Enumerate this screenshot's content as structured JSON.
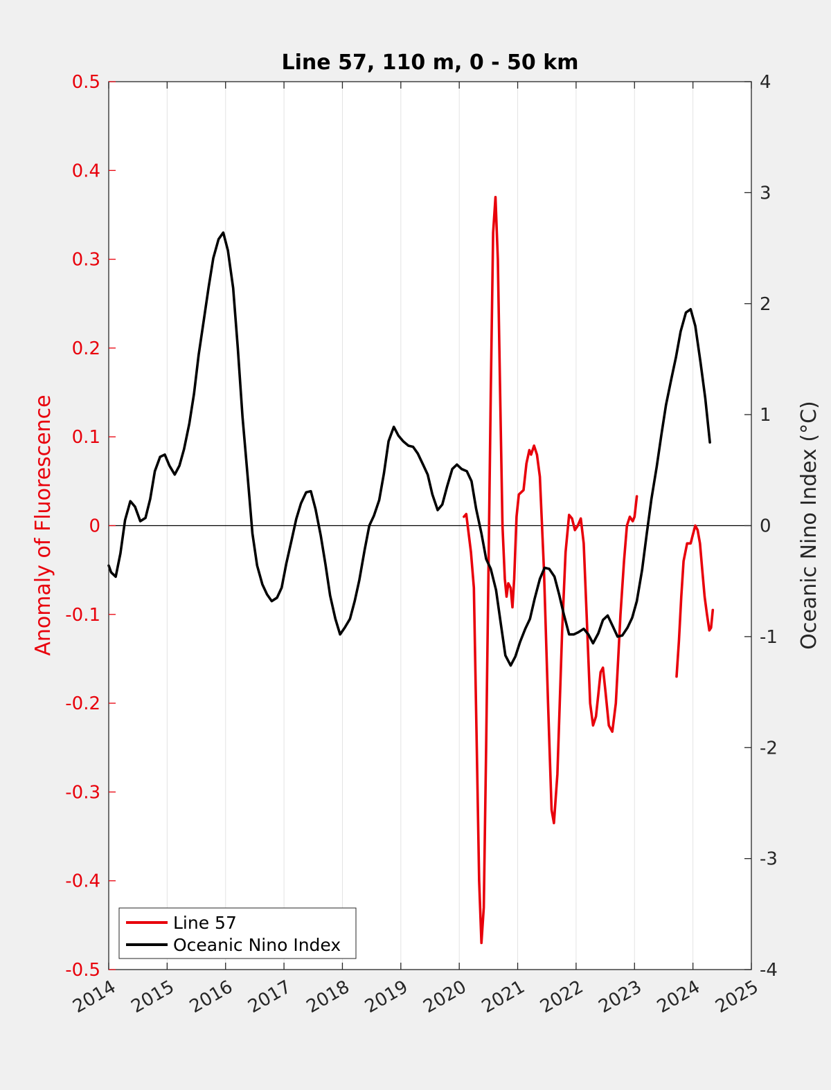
{
  "chart_data": {
    "type": "line",
    "title": "Line 57, 110 m, 0 - 50 km",
    "ylabel": "Anomaly of Fluorescence",
    "ylabel_right": "Oceanic Nino Index (°C)",
    "xlim": [
      2014,
      2025
    ],
    "ylim": [
      -0.5,
      0.5
    ],
    "ylim_right": [
      -4,
      4
    ],
    "x_ticks": [
      "2014",
      "2015",
      "2016",
      "2017",
      "2018",
      "2019",
      "2020",
      "2021",
      "2022",
      "2023",
      "2024",
      "2025"
    ],
    "y_ticks": [
      "-0.5",
      "-0.4",
      "-0.3",
      "-0.2",
      "-0.1",
      "0",
      "0.1",
      "0.2",
      "0.3",
      "0.4",
      "0.5"
    ],
    "y_ticks_right": [
      "-4",
      "-3",
      "-2",
      "-1",
      "0",
      "1",
      "2",
      "3",
      "4"
    ],
    "grid": "vertical",
    "zero_line": true,
    "legend_position": "bottom-left",
    "colors": {
      "line57": "#e8000b",
      "oni": "#000000",
      "left_axis": "#e8000b"
    },
    "series": [
      {
        "name": "Line 57",
        "axis": "left",
        "color": "#e8000b",
        "segments": [
          [
            [
              2020.08,
              0.01
            ],
            [
              2020.12,
              0.013
            ],
            [
              2020.2,
              -0.03
            ],
            [
              2020.25,
              -0.07
            ],
            [
              2020.3,
              -0.25
            ],
            [
              2020.34,
              -0.4
            ],
            [
              2020.38,
              -0.47
            ],
            [
              2020.42,
              -0.43
            ],
            [
              2020.46,
              -0.25
            ],
            [
              2020.5,
              -0.05
            ],
            [
              2020.54,
              0.15
            ],
            [
              2020.58,
              0.33
            ],
            [
              2020.62,
              0.37
            ],
            [
              2020.66,
              0.3
            ],
            [
              2020.7,
              0.15
            ],
            [
              2020.74,
              0.0
            ],
            [
              2020.78,
              -0.06
            ],
            [
              2020.81,
              -0.08
            ],
            [
              2020.84,
              -0.065
            ],
            [
              2020.88,
              -0.07
            ],
            [
              2020.91,
              -0.092
            ],
            [
              2020.94,
              -0.06
            ],
            [
              2020.98,
              0.01
            ],
            [
              2021.02,
              0.035
            ],
            [
              2021.1,
              0.04
            ],
            [
              2021.15,
              0.07
            ],
            [
              2021.2,
              0.085
            ],
            [
              2021.23,
              0.08
            ],
            [
              2021.28,
              0.09
            ],
            [
              2021.33,
              0.08
            ],
            [
              2021.38,
              0.055
            ],
            [
              2021.45,
              -0.05
            ],
            [
              2021.52,
              -0.2
            ],
            [
              2021.58,
              -0.32
            ],
            [
              2021.62,
              -0.335
            ],
            [
              2021.68,
              -0.28
            ],
            [
              2021.72,
              -0.2
            ],
            [
              2021.76,
              -0.12
            ],
            [
              2021.82,
              -0.03
            ],
            [
              2021.88,
              0.012
            ],
            [
              2021.93,
              0.008
            ],
            [
              2021.98,
              -0.005
            ],
            [
              2022.03,
              0.0
            ],
            [
              2022.08,
              0.008
            ],
            [
              2022.13,
              -0.02
            ],
            [
              2022.18,
              -0.1
            ],
            [
              2022.24,
              -0.2
            ],
            [
              2022.29,
              -0.225
            ],
            [
              2022.34,
              -0.215
            ],
            [
              2022.38,
              -0.19
            ],
            [
              2022.42,
              -0.165
            ],
            [
              2022.46,
              -0.16
            ],
            [
              2022.5,
              -0.185
            ],
            [
              2022.56,
              -0.225
            ],
            [
              2022.62,
              -0.232
            ],
            [
              2022.68,
              -0.2
            ],
            [
              2022.72,
              -0.15
            ],
            [
              2022.76,
              -0.1
            ],
            [
              2022.82,
              -0.04
            ],
            [
              2022.87,
              0.0
            ],
            [
              2022.92,
              0.01
            ],
            [
              2022.97,
              0.005
            ],
            [
              2023.0,
              0.01
            ],
            [
              2023.04,
              0.033
            ]
          ],
          [
            [
              2023.72,
              -0.17
            ],
            [
              2023.76,
              -0.13
            ],
            [
              2023.8,
              -0.08
            ],
            [
              2023.84,
              -0.04
            ],
            [
              2023.9,
              -0.02
            ],
            [
              2023.96,
              -0.02
            ],
            [
              2024.0,
              -0.01
            ],
            [
              2024.04,
              0.0
            ],
            [
              2024.08,
              -0.005
            ],
            [
              2024.12,
              -0.02
            ],
            [
              2024.16,
              -0.05
            ],
            [
              2024.2,
              -0.08
            ],
            [
              2024.24,
              -0.1
            ],
            [
              2024.28,
              -0.118
            ],
            [
              2024.31,
              -0.115
            ],
            [
              2024.34,
              -0.095
            ]
          ]
        ]
      },
      {
        "name": "Oceanic Nino Index",
        "axis": "right",
        "color": "#000000",
        "segments": [
          [
            [
              2014.0,
              -0.36
            ],
            [
              2014.04,
              -0.42
            ],
            [
              2014.12,
              -0.46
            ],
            [
              2014.2,
              -0.25
            ],
            [
              2014.28,
              0.05
            ],
            [
              2014.37,
              0.22
            ],
            [
              2014.45,
              0.17
            ],
            [
              2014.54,
              0.04
            ],
            [
              2014.63,
              0.07
            ],
            [
              2014.71,
              0.24
            ],
            [
              2014.79,
              0.49
            ],
            [
              2014.88,
              0.62
            ],
            [
              2014.96,
              0.64
            ],
            [
              2015.04,
              0.54
            ],
            [
              2015.13,
              0.46
            ],
            [
              2015.21,
              0.54
            ],
            [
              2015.29,
              0.69
            ],
            [
              2015.38,
              0.92
            ],
            [
              2015.46,
              1.19
            ],
            [
              2015.54,
              1.54
            ],
            [
              2015.63,
              1.86
            ],
            [
              2015.71,
              2.15
            ],
            [
              2015.79,
              2.41
            ],
            [
              2015.88,
              2.58
            ],
            [
              2015.96,
              2.64
            ],
            [
              2016.04,
              2.48
            ],
            [
              2016.13,
              2.14
            ],
            [
              2016.21,
              1.6
            ],
            [
              2016.29,
              0.98
            ],
            [
              2016.38,
              0.43
            ],
            [
              2016.46,
              -0.07
            ],
            [
              2016.54,
              -0.36
            ],
            [
              2016.63,
              -0.53
            ],
            [
              2016.71,
              -0.62
            ],
            [
              2016.79,
              -0.68
            ],
            [
              2016.88,
              -0.65
            ],
            [
              2016.96,
              -0.56
            ],
            [
              2017.04,
              -0.34
            ],
            [
              2017.13,
              -0.13
            ],
            [
              2017.21,
              0.06
            ],
            [
              2017.29,
              0.2
            ],
            [
              2017.38,
              0.3
            ],
            [
              2017.46,
              0.31
            ],
            [
              2017.54,
              0.15
            ],
            [
              2017.63,
              -0.09
            ],
            [
              2017.71,
              -0.35
            ],
            [
              2017.79,
              -0.63
            ],
            [
              2017.88,
              -0.84
            ],
            [
              2017.96,
              -0.98
            ],
            [
              2018.04,
              -0.92
            ],
            [
              2018.13,
              -0.84
            ],
            [
              2018.21,
              -0.68
            ],
            [
              2018.29,
              -0.49
            ],
            [
              2018.38,
              -0.22
            ],
            [
              2018.46,
              0.0
            ],
            [
              2018.54,
              0.09
            ],
            [
              2018.63,
              0.23
            ],
            [
              2018.71,
              0.47
            ],
            [
              2018.79,
              0.76
            ],
            [
              2018.88,
              0.89
            ],
            [
              2018.96,
              0.81
            ],
            [
              2019.04,
              0.76
            ],
            [
              2019.13,
              0.72
            ],
            [
              2019.21,
              0.71
            ],
            [
              2019.29,
              0.65
            ],
            [
              2019.38,
              0.55
            ],
            [
              2019.46,
              0.46
            ],
            [
              2019.54,
              0.28
            ],
            [
              2019.63,
              0.14
            ],
            [
              2019.71,
              0.19
            ],
            [
              2019.79,
              0.35
            ],
            [
              2019.88,
              0.51
            ],
            [
              2019.96,
              0.55
            ],
            [
              2020.04,
              0.51
            ],
            [
              2020.13,
              0.49
            ],
            [
              2020.21,
              0.4
            ],
            [
              2020.29,
              0.15
            ],
            [
              2020.38,
              -0.07
            ],
            [
              2020.46,
              -0.3
            ],
            [
              2020.54,
              -0.39
            ],
            [
              2020.63,
              -0.58
            ],
            [
              2020.71,
              -0.88
            ],
            [
              2020.79,
              -1.17
            ],
            [
              2020.88,
              -1.26
            ],
            [
              2020.96,
              -1.18
            ],
            [
              2021.04,
              -1.05
            ],
            [
              2021.13,
              -0.93
            ],
            [
              2021.21,
              -0.84
            ],
            [
              2021.29,
              -0.66
            ],
            [
              2021.38,
              -0.48
            ],
            [
              2021.46,
              -0.38
            ],
            [
              2021.54,
              -0.39
            ],
            [
              2021.63,
              -0.46
            ],
            [
              2021.71,
              -0.62
            ],
            [
              2021.79,
              -0.8
            ],
            [
              2021.88,
              -0.98
            ],
            [
              2021.96,
              -0.98
            ],
            [
              2022.04,
              -0.96
            ],
            [
              2022.13,
              -0.93
            ],
            [
              2022.21,
              -0.98
            ],
            [
              2022.29,
              -1.06
            ],
            [
              2022.38,
              -0.97
            ],
            [
              2022.46,
              -0.85
            ],
            [
              2022.54,
              -0.81
            ],
            [
              2022.63,
              -0.91
            ],
            [
              2022.71,
              -1.0
            ],
            [
              2022.79,
              -0.99
            ],
            [
              2022.88,
              -0.92
            ],
            [
              2022.96,
              -0.83
            ],
            [
              2023.04,
              -0.68
            ],
            [
              2023.13,
              -0.4
            ],
            [
              2023.21,
              -0.07
            ],
            [
              2023.29,
              0.24
            ],
            [
              2023.38,
              0.53
            ],
            [
              2023.46,
              0.82
            ],
            [
              2023.54,
              1.09
            ],
            [
              2023.63,
              1.32
            ],
            [
              2023.71,
              1.52
            ],
            [
              2023.79,
              1.75
            ],
            [
              2023.88,
              1.92
            ],
            [
              2023.96,
              1.95
            ],
            [
              2024.04,
              1.8
            ],
            [
              2024.13,
              1.47
            ],
            [
              2024.21,
              1.15
            ],
            [
              2024.29,
              0.75
            ]
          ]
        ]
      }
    ]
  }
}
